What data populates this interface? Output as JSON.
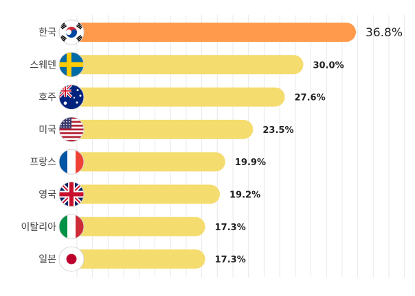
{
  "chart_data": {
    "type": "bar",
    "orientation": "horizontal",
    "title": "",
    "xlabel": "",
    "ylabel": "",
    "unit": "%",
    "xlim": [
      0,
      40
    ],
    "grid": true,
    "categories": [
      "한국",
      "스웨덴",
      "호주",
      "미국",
      "프랑스",
      "영국",
      "이탈리아",
      "일본"
    ],
    "values": [
      36.8,
      30.0,
      27.6,
      23.5,
      19.9,
      19.2,
      17.3,
      17.3
    ],
    "value_labels": [
      "36.8%",
      "30.0%",
      "27.6%",
      "23.5%",
      "19.9%",
      "19.2%",
      "17.3%",
      "17.3%"
    ],
    "flags": [
      "flag-korea",
      "flag-sweden",
      "flag-australia",
      "flag-usa",
      "flag-france",
      "flag-uk",
      "flag-italy",
      "flag-japan"
    ],
    "highlight_index": 0,
    "colors": {
      "highlight": "#FF9A4D",
      "bar": "#F4DC6E",
      "grid": "#E8E8E8"
    }
  }
}
